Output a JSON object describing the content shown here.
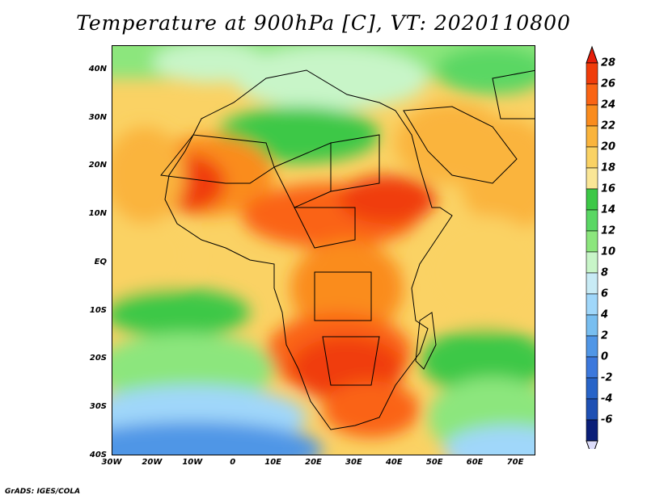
{
  "title": "Temperature at 900hPa [C], VT: 2020110800",
  "credit": "GrADS: IGES/COLA",
  "map": {
    "lon_labels": [
      "30W",
      "20W",
      "10W",
      "0",
      "10E",
      "20E",
      "30E",
      "40E",
      "50E",
      "60E",
      "70E"
    ],
    "lat_labels": [
      "40N",
      "30N",
      "20N",
      "10N",
      "EQ",
      "10S",
      "20S",
      "30S",
      "40S"
    ],
    "lon_range": [
      -30,
      75
    ],
    "lat_range": [
      -40,
      45
    ]
  },
  "colorbar": {
    "labels": [
      "28",
      "26",
      "24",
      "22",
      "20",
      "18",
      "16",
      "14",
      "12",
      "10",
      "8",
      "6",
      "4",
      "2",
      "0",
      "-2",
      "-4",
      "-6"
    ],
    "colors": [
      "#f03c0a",
      "#fa6414",
      "#fa8c1e",
      "#fab43c",
      "#fad264",
      "#fae696",
      "#3cc846",
      "#5ad764",
      "#8ce67d",
      "#c8f5c8",
      "#c8ebf5",
      "#a0d7fa",
      "#78bef0",
      "#5096e6",
      "#3c78dc",
      "#2864c8",
      "#1e50b4",
      "#0a1e78"
    ],
    "top_arrow_color": "#e61e0a",
    "bottom_arrow_color": "#dcdcfa"
  }
}
